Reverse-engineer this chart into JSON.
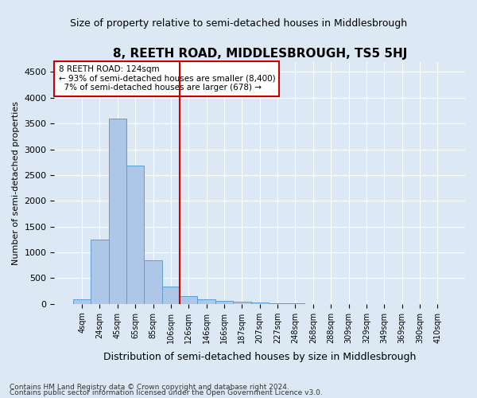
{
  "title": "8, REETH ROAD, MIDDLESBROUGH, TS5 5HJ",
  "subtitle": "Size of property relative to semi-detached houses in Middlesbrough",
  "xlabel": "Distribution of semi-detached houses by size in Middlesbrough",
  "ylabel": "Number of semi-detached properties",
  "bin_labels": [
    "4sqm",
    "24sqm",
    "45sqm",
    "65sqm",
    "85sqm",
    "106sqm",
    "126sqm",
    "146sqm",
    "166sqm",
    "187sqm",
    "207sqm",
    "227sqm",
    "248sqm",
    "268sqm",
    "288sqm",
    "309sqm",
    "329sqm",
    "349sqm",
    "369sqm",
    "390sqm",
    "410sqm"
  ],
  "bar_values": [
    80,
    1240,
    3600,
    2680,
    850,
    335,
    155,
    90,
    60,
    35,
    20,
    10,
    5,
    0,
    0,
    0,
    0,
    0,
    0,
    0,
    0
  ],
  "bar_color": "#aec6e8",
  "bar_edge_color": "#5a9fd4",
  "property_sqm": "124sqm",
  "property_name": "8 REETH ROAD",
  "pct_smaller": 93,
  "count_smaller": "8,400",
  "pct_larger": 7,
  "count_larger": 678,
  "annotation_box_color": "#cc0000",
  "vline_color": "#cc0000",
  "ylim": [
    0,
    4700
  ],
  "yticks": [
    0,
    500,
    1000,
    1500,
    2000,
    2500,
    3000,
    3500,
    4000,
    4500
  ],
  "grid_color": "#ffffff",
  "bg_color": "#dce9f5",
  "footnote1": "Contains HM Land Registry data © Crown copyright and database right 2024.",
  "footnote2": "Contains public sector information licensed under the Open Government Licence v3.0."
}
